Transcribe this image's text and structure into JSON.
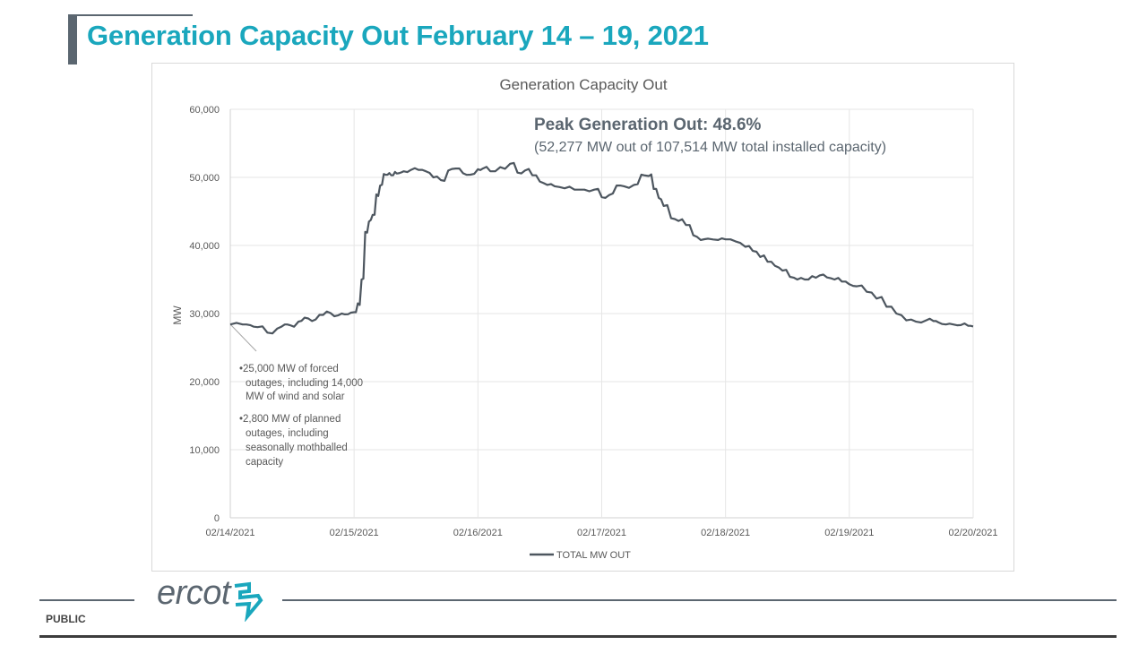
{
  "slide": {
    "title": "Generation Capacity Out February 14 – 19, 2021",
    "footer_label": "PUBLIC",
    "logo_text": "ercot",
    "brand_color": "#1aa7bd",
    "gray_color": "#5b6670"
  },
  "chart_data": {
    "type": "line",
    "title": "Generation Capacity Out",
    "xlabel": "",
    "ylabel": "MW",
    "ylim": [
      0,
      60000
    ],
    "yticks": [
      0,
      10000,
      20000,
      30000,
      40000,
      50000,
      60000
    ],
    "ytick_labels": [
      "0",
      "10,000",
      "20,000",
      "30,000",
      "40,000",
      "50,000",
      "60,000"
    ],
    "xlim_days": [
      0,
      6
    ],
    "xtick_labels": [
      "02/14/2021",
      "02/15/2021",
      "02/16/2021",
      "02/17/2021",
      "02/18/2021",
      "02/19/2021",
      "02/20/2021"
    ],
    "grid": true,
    "legend": {
      "position": "bottom",
      "entries": [
        "TOTAL MW OUT"
      ]
    },
    "line_color": "#4d565f",
    "annotations": {
      "peak_title": "Peak Generation Out: 48.6%",
      "peak_subtitle": "(52,277 MW out of 107,514 MW total installed capacity)",
      "callout_lines": [
        "•25,000 MW of forced",
        "outages, including 14,000",
        "MW of wind and solar",
        "•2,800 MW of planned",
        "outages, including",
        "seasonally mothballed",
        "capacity"
      ]
    },
    "series": [
      {
        "name": "TOTAL MW OUT",
        "x_days": [
          0.0,
          0.1,
          0.16,
          0.22,
          0.3,
          0.38,
          0.44,
          0.48,
          0.55,
          0.6,
          0.66,
          0.72,
          0.78,
          0.84,
          0.9,
          0.95,
          1.0,
          1.03,
          1.06,
          1.09,
          1.12,
          1.15,
          1.18,
          1.21,
          1.24,
          1.27,
          1.3,
          1.33,
          1.36,
          1.4,
          1.46,
          1.52,
          1.58,
          1.64,
          1.7,
          1.76,
          1.82,
          1.88,
          1.94,
          2.0,
          2.04,
          2.1,
          2.18,
          2.26,
          2.32,
          2.38,
          2.44,
          2.5,
          2.56,
          2.62,
          2.7,
          2.78,
          2.86,
          2.94,
          3.0,
          3.06,
          3.12,
          3.18,
          3.26,
          3.32,
          3.38,
          3.42,
          3.46,
          3.5,
          3.56,
          3.62,
          3.68,
          3.74,
          3.8,
          3.86,
          3.94,
          4.0,
          4.08,
          4.16,
          4.22,
          4.28,
          4.34,
          4.4,
          4.46,
          4.52,
          4.58,
          4.64,
          4.7,
          4.76,
          4.82,
          4.88,
          4.94,
          5.0,
          5.06,
          5.14,
          5.22,
          5.3,
          5.38,
          5.46,
          5.54,
          5.62,
          5.68,
          5.72,
          5.78,
          5.84,
          5.9,
          5.96,
          6.0
        ],
        "values": [
          28400,
          28400,
          28300,
          28000,
          27200,
          27800,
          28400,
          28300,
          28800,
          29400,
          28900,
          29800,
          30300,
          29600,
          30000,
          29900,
          30200,
          31500,
          35000,
          42000,
          43500,
          44500,
          47500,
          48800,
          50500,
          50400,
          50300,
          50800,
          50600,
          50900,
          51100,
          51100,
          50900,
          50000,
          49600,
          51000,
          51300,
          50600,
          50400,
          51200,
          51300,
          50900,
          51500,
          52000,
          50700,
          51000,
          50300,
          49400,
          48900,
          48700,
          48400,
          48200,
          48200,
          48200,
          47100,
          47400,
          48800,
          48700,
          48900,
          50400,
          50200,
          48300,
          47000,
          45800,
          44000,
          43600,
          43000,
          41500,
          40800,
          41000,
          40800,
          40900,
          40600,
          39800,
          39200,
          38300,
          37600,
          37000,
          36300,
          35400,
          35000,
          35000,
          35500,
          35600,
          35300,
          35000,
          34700,
          34300,
          34000,
          33200,
          32200,
          31000,
          30000,
          29000,
          28800,
          29000,
          28900,
          28700,
          28400,
          28400,
          28300,
          28200,
          28100
        ]
      }
    ]
  }
}
